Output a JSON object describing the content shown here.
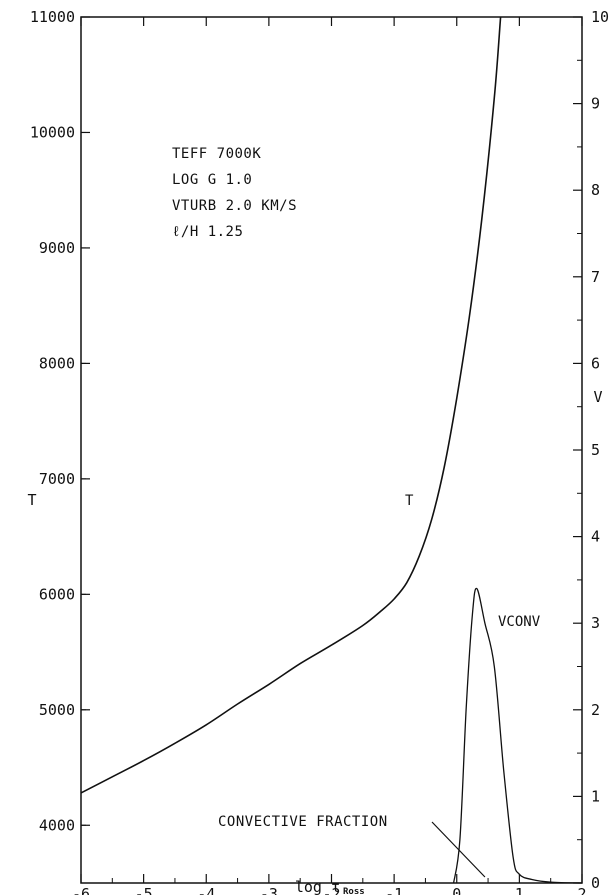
{
  "chart_data": {
    "type": "line",
    "title": "",
    "xlabel": "log τ",
    "xlabel_subscript": "Ross",
    "ylabel_left": "T",
    "ylabel_right": "V",
    "xlim": [
      -6,
      2
    ],
    "ylim_left": [
      3500,
      11000
    ],
    "ylim_right": [
      0,
      10
    ],
    "x_ticks": [
      -6,
      -5,
      -4,
      -3,
      -2,
      -1,
      0,
      1,
      2
    ],
    "x_tick_labels": [
      "-6",
      "-5",
      "-4",
      "-3",
      "-2",
      "-1",
      "0",
      "1",
      "2"
    ],
    "y_left_ticks": [
      4000,
      5000,
      6000,
      7000,
      8000,
      9000,
      10000,
      11000
    ],
    "y_left_tick_labels": [
      "4000",
      "5000",
      "6000",
      "7000",
      "8000",
      "9000",
      "10000",
      "11000"
    ],
    "y_right_ticks": [
      0,
      1,
      2,
      3,
      4,
      5,
      6,
      7,
      8,
      9,
      10
    ],
    "y_right_tick_labels": [
      "0",
      "1",
      "2",
      "3",
      "4",
      "5",
      "6",
      "7",
      "8",
      "9",
      "10"
    ],
    "grid": false,
    "annotation_lines": [
      "TEFF 7000K",
      "LOG G 1.0",
      "VTURB 2.0 KM/S",
      "ℓ/H 1.25"
    ],
    "series": [
      {
        "name": "T",
        "axis": "left",
        "x": [
          -6,
          -5.5,
          -5,
          -4.5,
          -4,
          -3.5,
          -3,
          -2.5,
          -2,
          -1.5,
          -1.2,
          -1.0,
          -0.8,
          -0.6,
          -0.4,
          -0.2,
          0,
          0.2,
          0.4,
          0.6,
          0.7
        ],
        "y": [
          4280,
          4420,
          4560,
          4710,
          4870,
          5050,
          5220,
          5400,
          5560,
          5730,
          5860,
          5960,
          6100,
          6330,
          6650,
          7100,
          7700,
          8400,
          9250,
          10300,
          11000
        ]
      },
      {
        "name": "VCONV",
        "axis": "right",
        "x": [
          -0.05,
          0.05,
          0.15,
          0.25,
          0.32,
          0.45,
          0.6,
          0.75,
          0.9,
          1.0,
          1.2,
          1.5,
          2.0
        ],
        "y": [
          0.0,
          0.5,
          2.0,
          3.1,
          3.4,
          3.0,
          2.5,
          1.3,
          0.3,
          0.1,
          0.04,
          0.01,
          0.0
        ]
      }
    ],
    "callout": {
      "label": "CONVECTIVE FRACTION",
      "target_x": 0.45,
      "target_v": 0.0
    }
  }
}
